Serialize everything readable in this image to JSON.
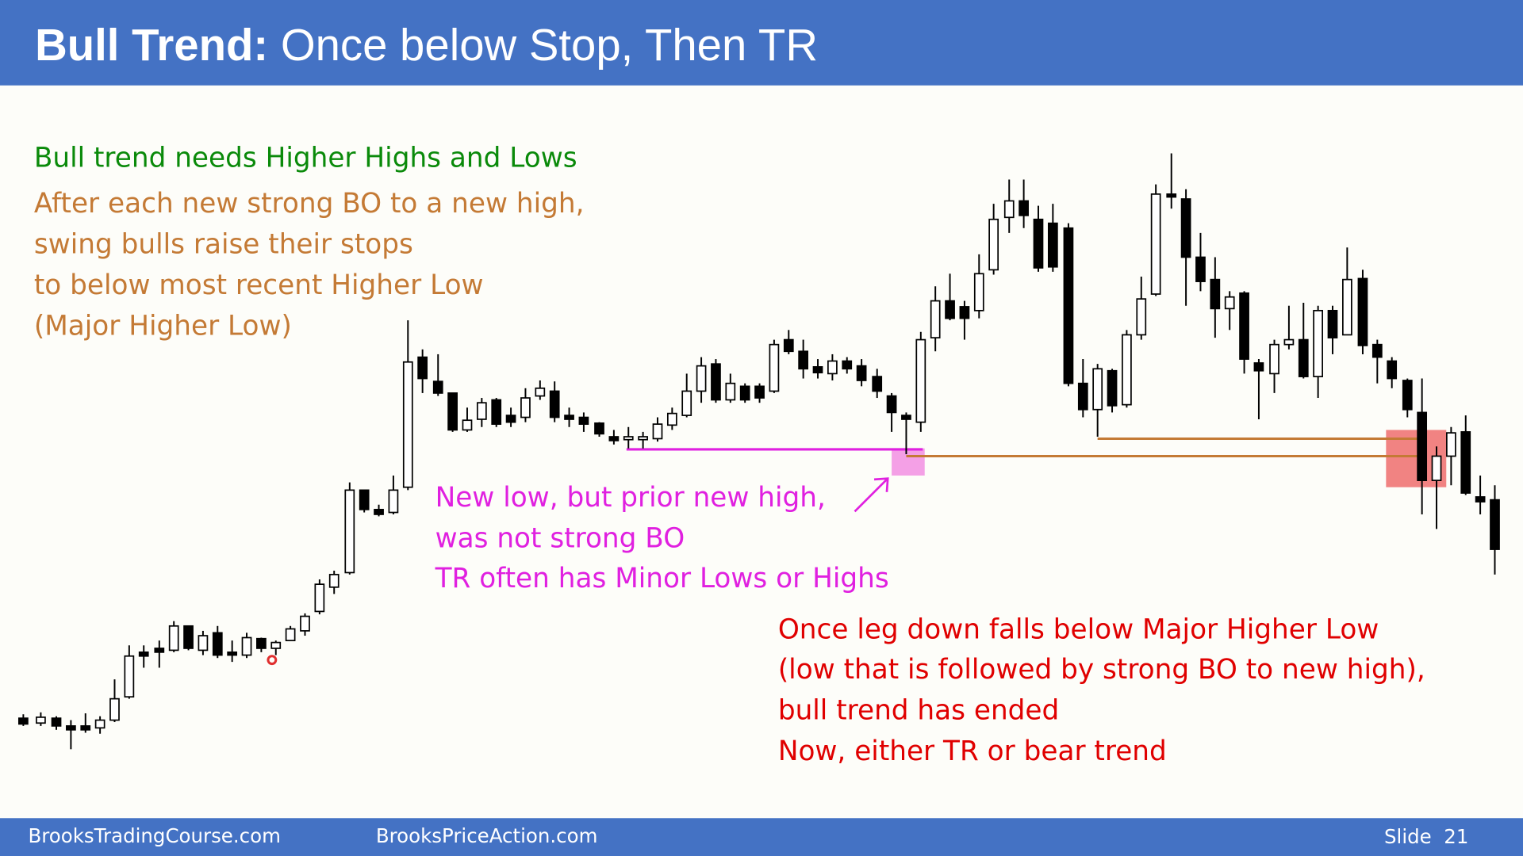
{
  "header": {
    "title_bold": "Bull Trend:",
    "title_rest": "Once below Stop, Then TR"
  },
  "notes": {
    "green": "Bull trend needs Higher Highs and Lows",
    "orange": [
      "After each new strong BO to a new high,",
      "swing bulls raise their stops",
      "to below most recent Higher Low",
      "(Major Higher Low)"
    ],
    "magenta": [
      "New low, but prior new high,",
      "was not strong BO",
      "TR often has Minor Lows or Highs"
    ],
    "red": [
      "Once leg down falls below Major Higher Low",
      "(low that is followed by strong BO to new high),",
      "bull trend has ended",
      "Now, either TR or bear trend"
    ]
  },
  "footer": {
    "left": "BrooksTradingCourse.com",
    "middle": "BrooksPriceAction.com",
    "slide": "Slide  21"
  }
}
